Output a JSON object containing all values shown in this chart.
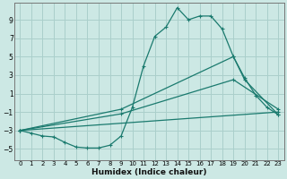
{
  "xlabel": "Humidex (Indice chaleur)",
  "background_color": "#cce8e4",
  "grid_color": "#aacfcb",
  "line_color": "#1a7a6e",
  "xlim": [
    -0.5,
    23.5
  ],
  "ylim": [
    -6.2,
    10.8
  ],
  "xticks": [
    0,
    1,
    2,
    3,
    4,
    5,
    6,
    7,
    8,
    9,
    10,
    11,
    12,
    13,
    14,
    15,
    16,
    17,
    18,
    19,
    20,
    21,
    22,
    23
  ],
  "yticks": [
    -5,
    -3,
    -1,
    1,
    3,
    5,
    7,
    9
  ],
  "curve1_x": [
    0,
    1,
    2,
    3,
    4,
    5,
    6,
    7,
    8,
    9,
    10,
    11,
    12,
    13,
    14,
    15,
    16,
    17,
    18,
    19,
    20,
    21,
    22,
    23
  ],
  "curve1_y": [
    -3.0,
    -3.3,
    -3.6,
    -3.7,
    -4.3,
    -4.8,
    -4.9,
    -4.9,
    -4.6,
    -3.6,
    -0.5,
    4.0,
    7.2,
    8.2,
    10.3,
    9.0,
    9.4,
    9.4,
    8.0,
    5.0,
    2.7,
    0.8,
    -0.5,
    -1.3
  ],
  "curve2_x": [
    0,
    9,
    19,
    20,
    23
  ],
  "curve2_y": [
    -3.0,
    -0.7,
    5.0,
    2.5,
    -1.3
  ],
  "curve3_x": [
    0,
    9,
    19,
    23
  ],
  "curve3_y": [
    -3.0,
    -1.2,
    2.5,
    -0.7
  ],
  "curve4_x": [
    0,
    23
  ],
  "curve4_y": [
    -3.0,
    -1.0
  ]
}
